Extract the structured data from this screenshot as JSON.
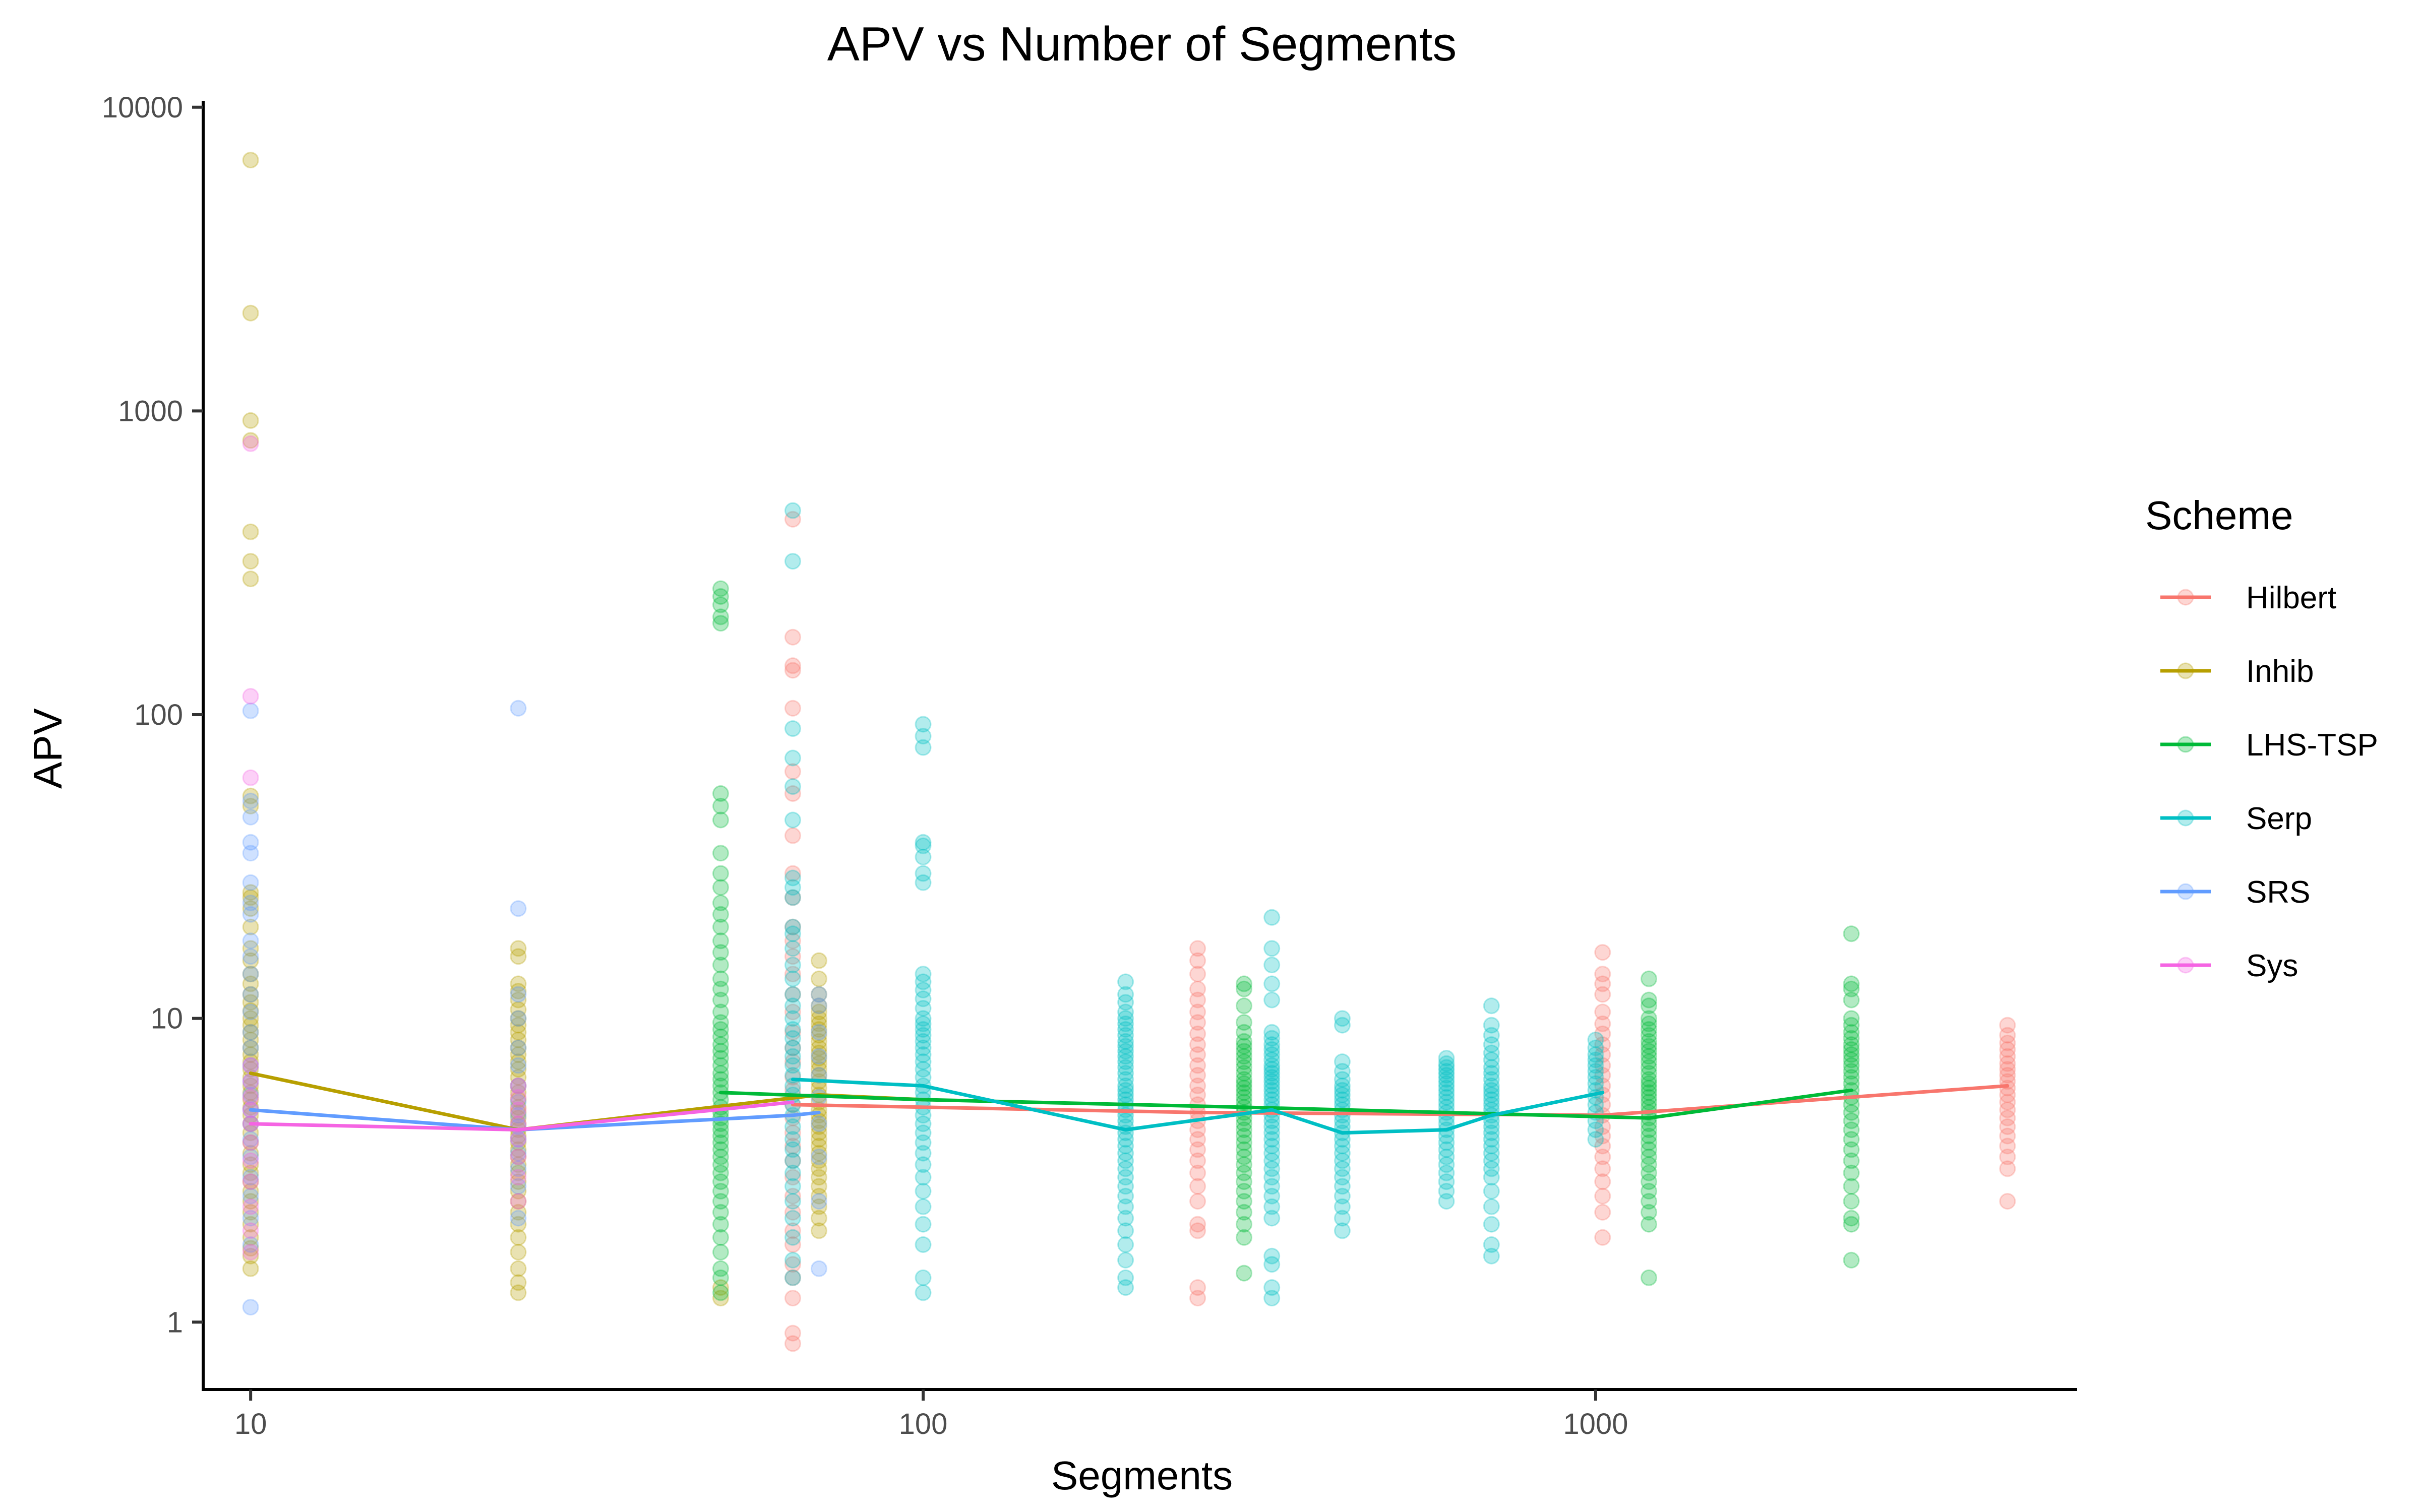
{
  "chart_data": {
    "type": "scatter",
    "title": "APV vs Number of Segments",
    "xlabel": "Segments",
    "ylabel": "APV",
    "x_scale": "log10",
    "y_scale": "log10",
    "xlim": [
      8.5,
      5200
    ],
    "ylim": [
      0.6,
      10500
    ],
    "x_ticks": [
      10,
      100,
      1000
    ],
    "y_ticks": [
      1,
      10,
      100,
      1000,
      10000
    ],
    "grid": false,
    "legend_title": "Scheme",
    "legend_position": "right",
    "point_opacity": 0.3,
    "series": [
      {
        "name": "Hilbert",
        "color": "#F8766D",
        "line": [
          [
            64,
            5.2
          ],
          [
            256,
            4.9
          ],
          [
            1024,
            4.8
          ],
          [
            4096,
            6.0
          ]
        ],
        "points": [
          {
            "x": 64,
            "y": [
              0.85,
              0.92,
              1.2,
              1.4,
              1.55,
              1.8,
              2.0,
              2.3,
              2.6,
              3.0,
              3.4,
              3.8,
              4.2,
              4.7,
              5.2,
              5.8,
              6.4,
              7.2,
              8.0,
              9.0,
              10.5,
              12,
              14,
              16,
              18,
              20,
              25,
              30,
              40,
              55,
              65,
              105,
              140,
              145,
              180,
              440
            ]
          },
          {
            "x": 256,
            "y": [
              1.2,
              1.3,
              2.0,
              2.1,
              2.5,
              2.8,
              3.1,
              3.4,
              3.7,
              4.0,
              4.3,
              4.6,
              4.9,
              5.2,
              5.6,
              6.0,
              6.5,
              7.0,
              7.6,
              8.2,
              8.9,
              9.7,
              10.5,
              11.5,
              12.5,
              14,
              15.5,
              17
            ]
          },
          {
            "x": 1024,
            "y": [
              1.9,
              2.3,
              2.6,
              2.9,
              3.2,
              3.5,
              3.8,
              4.1,
              4.4,
              4.8,
              5.2,
              5.6,
              6.0,
              6.5,
              7.0,
              7.6,
              8.2,
              8.9,
              9.6,
              10.5,
              12,
              13,
              14,
              16.5
            ]
          },
          {
            "x": 4096,
            "y": [
              2.5,
              3.2,
              3.5,
              3.8,
              4.1,
              4.4,
              4.7,
              5.0,
              5.3,
              5.6,
              5.9,
              6.2,
              6.5,
              6.8,
              7.1,
              7.5,
              7.9,
              8.3,
              8.8,
              9.5
            ]
          }
        ]
      },
      {
        "name": "Inhib",
        "color": "#B79F00",
        "line": [
          [
            10,
            6.6
          ],
          [
            25,
            4.3
          ],
          [
            70,
            5.6
          ],
          [
            100,
            5.4
          ]
        ],
        "points": [
          {
            "x": 10,
            "y": [
              1.5,
              1.65,
              1.75,
              1.9,
              2.1,
              2.3,
              2.5,
              2.7,
              2.9,
              3.1,
              3.3,
              3.6,
              3.9,
              4.2,
              4.5,
              4.8,
              5.1,
              5.4,
              5.7,
              6.0,
              6.4,
              6.8,
              7.2,
              7.6,
              8.0,
              8.5,
              9.0,
              9.5,
              10,
              10.6,
              11.3,
              12,
              13,
              14,
              15.5,
              17,
              20,
              23,
              25,
              26,
              50,
              54,
              280,
              320,
              400,
              800,
              930,
              2100,
              6700
            ]
          },
          {
            "x": 25,
            "y": [
              1.25,
              1.35,
              1.5,
              1.7,
              1.9,
              2.1,
              2.3,
              2.5,
              2.7,
              2.9,
              3.1,
              3.3,
              3.5,
              3.7,
              3.9,
              4.1,
              4.3,
              4.5,
              4.7,
              4.9,
              5.1,
              5.4,
              5.7,
              6.0,
              6.4,
              6.8,
              7.2,
              7.6,
              8.0,
              8.5,
              9.0,
              9.5,
              10,
              10.7,
              11.5,
              12.3,
              13,
              16,
              17
            ]
          },
          {
            "x": 50,
            "y": [
              1.2,
              1.3
            ]
          },
          {
            "x": 70,
            "y": [
              2.0,
              2.2,
              2.4,
              2.6,
              2.8,
              3.0,
              3.2,
              3.4,
              3.6,
              3.8,
              4.0,
              4.2,
              4.4,
              4.6,
              4.8,
              5.0,
              5.3,
              5.6,
              5.9,
              6.2,
              6.5,
              6.8,
              7.1,
              7.4,
              7.7,
              8.0,
              8.4,
              8.8,
              9.2,
              9.6,
              10,
              10.5,
              11,
              12,
              13.5,
              15.5
            ]
          }
        ]
      },
      {
        "name": "LHS-TSP",
        "color": "#00BA38",
        "line": [
          [
            50,
            5.7
          ],
          [
            100,
            5.4
          ],
          [
            300,
            5.1
          ],
          [
            600,
            4.9
          ],
          [
            1200,
            4.7
          ],
          [
            2400,
            5.8
          ]
        ],
        "points": [
          {
            "x": 50,
            "y": [
              1.25,
              1.4,
              1.5,
              1.7,
              1.9,
              2.1,
              2.3,
              2.5,
              2.7,
              2.9,
              3.1,
              3.3,
              3.5,
              3.7,
              3.9,
              4.1,
              4.3,
              4.5,
              4.7,
              4.9,
              5.1,
              5.4,
              5.7,
              6.0,
              6.3,
              6.6,
              7.0,
              7.4,
              7.8,
              8.2,
              8.7,
              9.2,
              9.7,
              10.5,
              11.5,
              12.5,
              13.5,
              15,
              16.5,
              18,
              20,
              22,
              24,
              27,
              30,
              35,
              45,
              50,
              55,
              200,
              210,
              230,
              245,
              260
            ]
          },
          {
            "x": 300,
            "y": [
              1.45,
              1.9,
              2.1,
              2.3,
              2.5,
              2.7,
              2.9,
              3.1,
              3.3,
              3.5,
              3.7,
              3.9,
              4.1,
              4.3,
              4.5,
              4.7,
              4.9,
              5.1,
              5.3,
              5.5,
              5.7,
              5.9,
              6.1,
              6.3,
              6.6,
              6.9,
              7.2,
              7.5,
              7.8,
              8.1,
              8.4,
              9.0,
              9.7,
              11,
              12.5,
              13
            ]
          },
          {
            "x": 1200,
            "y": [
              1.4,
              2.1,
              2.3,
              2.5,
              2.7,
              2.9,
              3.1,
              3.3,
              3.5,
              3.7,
              3.9,
              4.1,
              4.3,
              4.5,
              4.7,
              4.9,
              5.1,
              5.3,
              5.5,
              5.7,
              5.9,
              6.1,
              6.3,
              6.6,
              6.9,
              7.2,
              7.5,
              7.8,
              8.1,
              8.4,
              8.8,
              9.2,
              9.6,
              10,
              11,
              11.5,
              13.5
            ]
          },
          {
            "x": 2400,
            "y": [
              1.6,
              2.1,
              2.2,
              2.5,
              2.8,
              3.1,
              3.4,
              3.7,
              4.0,
              4.3,
              4.6,
              4.9,
              5.2,
              5.5,
              5.8,
              6.1,
              6.4,
              6.7,
              7.0,
              7.3,
              7.6,
              7.9,
              8.2,
              8.6,
              9.0,
              9.5,
              10,
              11.5,
              12.5,
              13,
              19
            ]
          }
        ]
      },
      {
        "name": "Serp",
        "color": "#00BFC4",
        "line": [
          [
            64,
            6.3
          ],
          [
            100,
            6.0
          ],
          [
            200,
            4.3
          ],
          [
            330,
            5.0
          ],
          [
            420,
            4.2
          ],
          [
            600,
            4.3
          ],
          [
            700,
            4.8
          ],
          [
            1024,
            5.7
          ]
        ],
        "points": [
          {
            "x": 64,
            "y": [
              1.4,
              1.6,
              1.9,
              2.2,
              2.5,
              2.8,
              3.1,
              3.4,
              3.7,
              4.0,
              4.4,
              4.8,
              5.2,
              5.6,
              6.0,
              6.5,
              7.0,
              7.5,
              8.0,
              8.6,
              9.2,
              10,
              11,
              12,
              13.5,
              15,
              17,
              19,
              20,
              25,
              27,
              29,
              45,
              58,
              72,
              90,
              320,
              470
            ]
          },
          {
            "x": 100,
            "y": [
              1.25,
              1.4,
              1.8,
              2.1,
              2.4,
              2.7,
              3.0,
              3.3,
              3.6,
              3.9,
              4.2,
              4.5,
              4.8,
              5.1,
              5.4,
              5.7,
              6.0,
              6.4,
              6.8,
              7.2,
              7.6,
              8.0,
              8.4,
              8.8,
              9.2,
              9.6,
              10,
              10.8,
              11.6,
              12.4,
              13.2,
              14,
              28,
              30,
              34,
              37,
              38,
              78,
              85,
              93
            ]
          },
          {
            "x": 200,
            "y": [
              1.3,
              1.4,
              1.6,
              1.8,
              2.0,
              2.2,
              2.4,
              2.6,
              2.8,
              3.0,
              3.2,
              3.4,
              3.6,
              3.8,
              4.0,
              4.2,
              4.4,
              4.6,
              4.8,
              5.0,
              5.2,
              5.4,
              5.6,
              5.8,
              6.0,
              6.3,
              6.6,
              6.9,
              7.2,
              7.5,
              7.8,
              8.1,
              8.4,
              8.8,
              9.2,
              9.6,
              10,
              10.5,
              11.3,
              12,
              13.2
            ]
          },
          {
            "x": 330,
            "y": [
              1.2,
              1.3,
              1.55,
              1.65,
              2.2,
              2.4,
              2.6,
              2.8,
              3.0,
              3.2,
              3.4,
              3.6,
              3.8,
              4.0,
              4.2,
              4.4,
              4.6,
              4.8,
              5.0,
              5.2,
              5.4,
              5.6,
              5.8,
              6.0,
              6.2,
              6.4,
              6.6,
              6.8,
              7.0,
              7.3,
              7.6,
              7.9,
              8.2,
              8.6,
              9.0,
              11.5,
              13,
              15,
              17,
              21.5
            ]
          },
          {
            "x": 420,
            "y": [
              2.0,
              2.2,
              2.4,
              2.6,
              2.8,
              3.0,
              3.2,
              3.4,
              3.6,
              3.8,
              4.0,
              4.2,
              4.4,
              4.6,
              4.8,
              5.0,
              5.2,
              5.4,
              5.6,
              5.8,
              6.0,
              6.3,
              6.7,
              7.2,
              9.5,
              10
            ]
          },
          {
            "x": 600,
            "y": [
              2.5,
              2.7,
              2.9,
              3.1,
              3.3,
              3.5,
              3.7,
              3.9,
              4.1,
              4.3,
              4.5,
              4.7,
              4.9,
              5.1,
              5.3,
              5.5,
              5.7,
              5.9,
              6.1,
              6.3,
              6.5,
              6.7,
              6.9,
              7.1,
              7.4
            ]
          },
          {
            "x": 700,
            "y": [
              1.65,
              1.8,
              2.1,
              2.4,
              2.7,
              3.0,
              3.2,
              3.4,
              3.6,
              3.8,
              4.0,
              4.2,
              4.4,
              4.6,
              4.8,
              5.0,
              5.2,
              5.4,
              5.6,
              5.8,
              6.0,
              6.3,
              6.6,
              6.9,
              7.3,
              7.7,
              8.2,
              8.8,
              9.5,
              11
            ]
          },
          {
            "x": 1000,
            "y": [
              4.0,
              4.3,
              4.6,
              4.9,
              5.2,
              5.5,
              5.8,
              6.1,
              6.4,
              6.7,
              7.0,
              7.3,
              7.6,
              8.0,
              8.5
            ]
          }
        ]
      },
      {
        "name": "SRS",
        "color": "#619CFF",
        "line": [
          [
            10,
            5.0
          ],
          [
            25,
            4.3
          ],
          [
            64,
            4.8
          ],
          [
            70,
            4.9
          ]
        ],
        "points": [
          {
            "x": 10,
            "y": [
              1.12,
              1.8,
              2.2,
              2.6,
              3.0,
              3.5,
              4.0,
              4.5,
              5.0,
              5.6,
              6.2,
              7.0,
              8.0,
              9.0,
              10.5,
              12,
              14,
              16,
              18,
              22,
              24,
              28,
              35,
              38,
              46,
              52,
              103
            ]
          },
          {
            "x": 25,
            "y": [
              2.2,
              2.8,
              3.2,
              3.6,
              4.0,
              4.4,
              4.8,
              5.3,
              6.0,
              7.0,
              8.0,
              10,
              12,
              23,
              105
            ]
          },
          {
            "x": 70,
            "y": [
              1.5,
              2.5,
              3.5,
              4.5,
              5.5,
              6.5,
              7.5,
              9.0,
              11,
              12
            ]
          }
        ]
      },
      {
        "name": "Sys",
        "color": "#F564E3",
        "line": [
          [
            10,
            4.5
          ],
          [
            25,
            4.3
          ],
          [
            64,
            5.3
          ]
        ],
        "points": [
          {
            "x": 10,
            "y": [
              1.7,
              2.0,
              2.4,
              2.9,
              3.4,
              3.9,
              4.5,
              5.0,
              5.5,
              6.2,
              7.0,
              62,
              115,
              780
            ]
          },
          {
            "x": 25,
            "y": [
              2.5,
              3.0,
              3.5,
              4.0,
              4.5,
              5.0,
              5.5,
              6.0
            ]
          }
        ]
      }
    ]
  }
}
